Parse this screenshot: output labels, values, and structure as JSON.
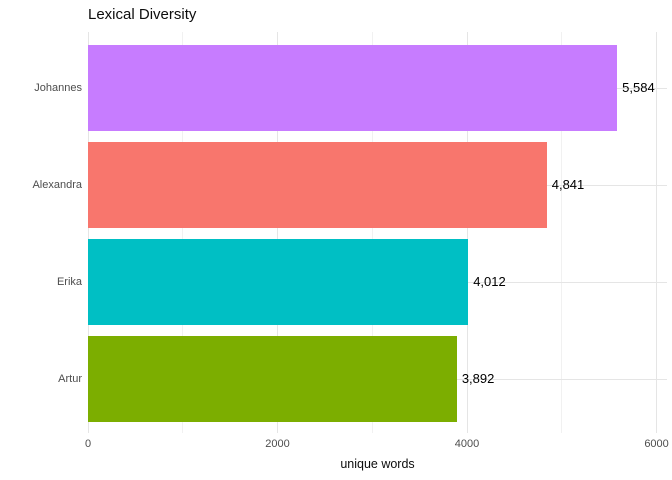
{
  "chart_data": {
    "type": "bar",
    "orientation": "horizontal",
    "title": "Lexical Diversity",
    "xlabel": "unique words",
    "ylabel": "",
    "categories": [
      "Johannes",
      "Alexandra",
      "Erika",
      "Artur"
    ],
    "values": [
      5584,
      4841,
      4012,
      3892
    ],
    "value_labels": [
      "5,584",
      "4,841",
      "4,012",
      "3,892"
    ],
    "bar_colors": [
      "#C77CFF",
      "#F8766D",
      "#00BFC4",
      "#7CAE00"
    ],
    "xlim": [
      0,
      6110
    ],
    "x_major_ticks": [
      0,
      2000,
      4000,
      6000
    ],
    "x_tick_labels": [
      "0",
      "2000",
      "4000",
      "6000"
    ],
    "x_minor_ticks": [
      1000,
      3000,
      5000
    ],
    "grid": true,
    "legend_position": "none",
    "colors": {
      "background": "#FFFFFF",
      "grid_major": "#E5E5E5",
      "grid_minor": "#F1F1F1",
      "axis_text": "#4D4D4D",
      "value_text": "#000000",
      "title_text": "#0D0D0D"
    }
  }
}
